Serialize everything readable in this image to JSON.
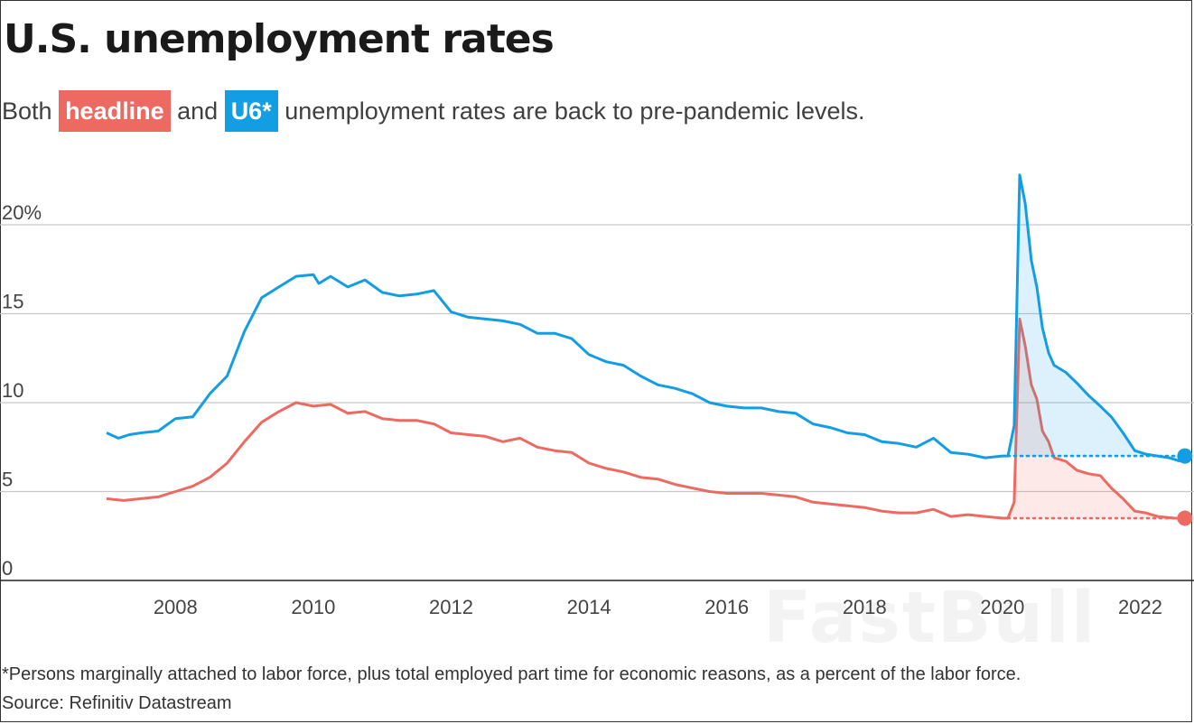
{
  "title": "U.S. unemployment rates",
  "subtitle": {
    "prefix": "Both",
    "headline_chip": "headline",
    "middle": "and",
    "u6_chip": "U6*",
    "suffix": "unemployment rates are back to pre-pandemic levels."
  },
  "footnote": "*Persons marginally attached to labor force, plus total employed part time for economic reasons, as a percent of the labor force.",
  "source": "Source: Refinitiv Datastream",
  "watermark": "FastBull",
  "colors": {
    "headline": "#ec6a62",
    "u6": "#139ee3"
  },
  "chart_data": {
    "type": "line",
    "title": "U.S. unemployment rates",
    "xlabel": "",
    "ylabel": "",
    "y_ticks": [
      "0",
      "5",
      "10",
      "15",
      "20%"
    ],
    "x_ticks": [
      "2008",
      "2010",
      "2012",
      "2014",
      "2016",
      "2018",
      "2020",
      "2022"
    ],
    "ylim": [
      0,
      23
    ],
    "xlim": [
      2007.0,
      2022.7
    ],
    "grid": "horizontal",
    "legend": "inline labels in subtitle",
    "series": [
      {
        "name": "headline",
        "color": "#ec6a62",
        "pre_pandemic_level": 3.5,
        "points": [
          [
            2007.0,
            4.6
          ],
          [
            2007.25,
            4.5
          ],
          [
            2007.5,
            4.6
          ],
          [
            2007.75,
            4.7
          ],
          [
            2008.0,
            5.0
          ],
          [
            2008.25,
            5.3
          ],
          [
            2008.5,
            5.8
          ],
          [
            2008.75,
            6.6
          ],
          [
            2009.0,
            7.8
          ],
          [
            2009.25,
            8.9
          ],
          [
            2009.5,
            9.5
          ],
          [
            2009.75,
            10.0
          ],
          [
            2010.0,
            9.8
          ],
          [
            2010.25,
            9.9
          ],
          [
            2010.5,
            9.4
          ],
          [
            2010.75,
            9.5
          ],
          [
            2011.0,
            9.1
          ],
          [
            2011.25,
            9.0
          ],
          [
            2011.5,
            9.0
          ],
          [
            2011.75,
            8.8
          ],
          [
            2012.0,
            8.3
          ],
          [
            2012.25,
            8.2
          ],
          [
            2012.5,
            8.1
          ],
          [
            2012.75,
            7.8
          ],
          [
            2013.0,
            8.0
          ],
          [
            2013.25,
            7.5
          ],
          [
            2013.5,
            7.3
          ],
          [
            2013.75,
            7.2
          ],
          [
            2014.0,
            6.6
          ],
          [
            2014.25,
            6.3
          ],
          [
            2014.5,
            6.1
          ],
          [
            2014.75,
            5.8
          ],
          [
            2015.0,
            5.7
          ],
          [
            2015.25,
            5.4
          ],
          [
            2015.5,
            5.2
          ],
          [
            2015.75,
            5.0
          ],
          [
            2016.0,
            4.9
          ],
          [
            2016.25,
            4.9
          ],
          [
            2016.5,
            4.9
          ],
          [
            2016.75,
            4.8
          ],
          [
            2017.0,
            4.7
          ],
          [
            2017.25,
            4.4
          ],
          [
            2017.5,
            4.3
          ],
          [
            2017.75,
            4.2
          ],
          [
            2018.0,
            4.1
          ],
          [
            2018.25,
            3.9
          ],
          [
            2018.5,
            3.8
          ],
          [
            2018.75,
            3.8
          ],
          [
            2019.0,
            4.0
          ],
          [
            2019.25,
            3.6
          ],
          [
            2019.5,
            3.7
          ],
          [
            2019.75,
            3.6
          ],
          [
            2020.0,
            3.5
          ],
          [
            2020.08,
            3.5
          ],
          [
            2020.17,
            4.4
          ],
          [
            2020.25,
            14.7
          ],
          [
            2020.33,
            13.2
          ],
          [
            2020.42,
            11.0
          ],
          [
            2020.5,
            10.2
          ],
          [
            2020.58,
            8.4
          ],
          [
            2020.67,
            7.8
          ],
          [
            2020.75,
            6.9
          ],
          [
            2020.92,
            6.7
          ],
          [
            2021.08,
            6.2
          ],
          [
            2021.25,
            6.0
          ],
          [
            2021.42,
            5.9
          ],
          [
            2021.58,
            5.2
          ],
          [
            2021.75,
            4.6
          ],
          [
            2021.92,
            3.9
          ],
          [
            2022.08,
            3.8
          ],
          [
            2022.25,
            3.6
          ],
          [
            2022.5,
            3.5
          ],
          [
            2022.58,
            3.5
          ]
        ]
      },
      {
        "name": "U6*",
        "color": "#139ee3",
        "pre_pandemic_level": 7.0,
        "points": [
          [
            2007.0,
            8.3
          ],
          [
            2007.17,
            8.0
          ],
          [
            2007.33,
            8.2
          ],
          [
            2007.5,
            8.3
          ],
          [
            2007.75,
            8.4
          ],
          [
            2008.0,
            9.1
          ],
          [
            2008.25,
            9.2
          ],
          [
            2008.5,
            10.5
          ],
          [
            2008.75,
            11.5
          ],
          [
            2009.0,
            14.0
          ],
          [
            2009.25,
            15.9
          ],
          [
            2009.5,
            16.5
          ],
          [
            2009.75,
            17.1
          ],
          [
            2010.0,
            17.2
          ],
          [
            2010.08,
            16.7
          ],
          [
            2010.25,
            17.1
          ],
          [
            2010.5,
            16.5
          ],
          [
            2010.75,
            16.9
          ],
          [
            2011.0,
            16.2
          ],
          [
            2011.25,
            16.0
          ],
          [
            2011.5,
            16.1
          ],
          [
            2011.75,
            16.3
          ],
          [
            2012.0,
            15.1
          ],
          [
            2012.25,
            14.8
          ],
          [
            2012.5,
            14.7
          ],
          [
            2012.75,
            14.6
          ],
          [
            2013.0,
            14.4
          ],
          [
            2013.25,
            13.9
          ],
          [
            2013.5,
            13.9
          ],
          [
            2013.75,
            13.6
          ],
          [
            2014.0,
            12.7
          ],
          [
            2014.25,
            12.3
          ],
          [
            2014.5,
            12.1
          ],
          [
            2014.75,
            11.5
          ],
          [
            2015.0,
            11.0
          ],
          [
            2015.25,
            10.8
          ],
          [
            2015.5,
            10.5
          ],
          [
            2015.75,
            10.0
          ],
          [
            2016.0,
            9.8
          ],
          [
            2016.25,
            9.7
          ],
          [
            2016.5,
            9.7
          ],
          [
            2016.75,
            9.5
          ],
          [
            2017.0,
            9.4
          ],
          [
            2017.25,
            8.8
          ],
          [
            2017.5,
            8.6
          ],
          [
            2017.75,
            8.3
          ],
          [
            2018.0,
            8.2
          ],
          [
            2018.25,
            7.8
          ],
          [
            2018.5,
            7.7
          ],
          [
            2018.75,
            7.5
          ],
          [
            2019.0,
            8.0
          ],
          [
            2019.25,
            7.2
          ],
          [
            2019.5,
            7.1
          ],
          [
            2019.75,
            6.9
          ],
          [
            2020.0,
            7.0
          ],
          [
            2020.08,
            7.0
          ],
          [
            2020.17,
            8.7
          ],
          [
            2020.25,
            22.8
          ],
          [
            2020.33,
            21.2
          ],
          [
            2020.42,
            18.0
          ],
          [
            2020.5,
            16.5
          ],
          [
            2020.58,
            14.2
          ],
          [
            2020.67,
            12.8
          ],
          [
            2020.75,
            12.1
          ],
          [
            2020.92,
            11.7
          ],
          [
            2021.08,
            11.1
          ],
          [
            2021.25,
            10.4
          ],
          [
            2021.42,
            9.8
          ],
          [
            2021.58,
            9.2
          ],
          [
            2021.75,
            8.3
          ],
          [
            2021.92,
            7.3
          ],
          [
            2022.08,
            7.1
          ],
          [
            2022.25,
            7.0
          ],
          [
            2022.42,
            6.9
          ],
          [
            2022.58,
            6.7
          ]
        ]
      }
    ]
  }
}
